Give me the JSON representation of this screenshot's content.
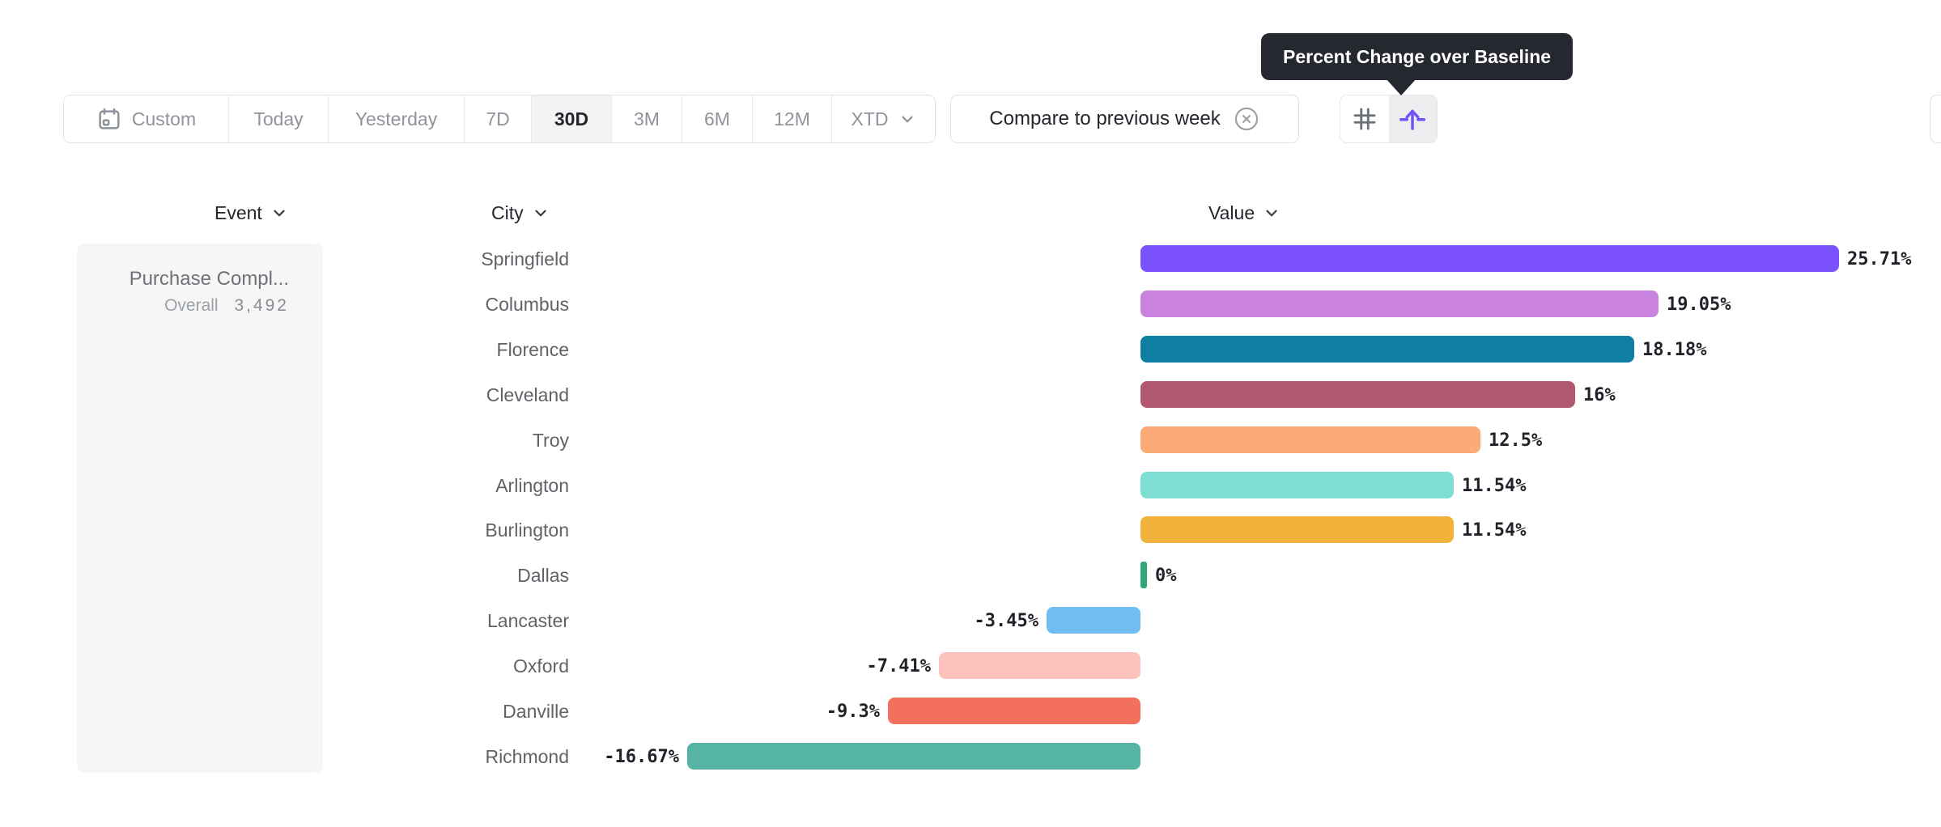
{
  "tooltip": {
    "text": "Percent Change over Baseline"
  },
  "toolbar": {
    "date_ranges": [
      {
        "label": "Custom",
        "icon": "calendar-icon",
        "selected": false
      },
      {
        "label": "Today",
        "selected": false
      },
      {
        "label": "Yesterday",
        "selected": false
      },
      {
        "label": "7D",
        "selected": false
      },
      {
        "label": "30D",
        "selected": true
      },
      {
        "label": "3M",
        "selected": false
      },
      {
        "label": "6M",
        "selected": false
      },
      {
        "label": "12M",
        "selected": false
      },
      {
        "label": "XTD",
        "chevron": true,
        "selected": false
      }
    ],
    "compare_label": "Compare to previous week",
    "view_toggle": [
      {
        "icon": "grid-icon",
        "selected": false
      },
      {
        "icon": "baseline-arrow-icon",
        "selected": true
      }
    ]
  },
  "columns": {
    "event": "Event",
    "city": "City",
    "value": "Value"
  },
  "event_card": {
    "title": "Purchase Compl...",
    "overall_label": "Overall",
    "overall_value": "3,492"
  },
  "chart_data": {
    "type": "bar",
    "orientation": "horizontal",
    "title": "Percent Change over Baseline",
    "unit": "%",
    "baseline": 0,
    "xlim": [
      -16.67,
      25.71
    ],
    "categories": [
      "Springfield",
      "Columbus",
      "Florence",
      "Cleveland",
      "Troy",
      "Arlington",
      "Burlington",
      "Dallas",
      "Lancaster",
      "Oxford",
      "Danville",
      "Richmond"
    ],
    "values": [
      25.71,
      19.05,
      18.18,
      16,
      12.5,
      11.54,
      11.54,
      0,
      -3.45,
      -7.41,
      -9.3,
      -16.67
    ],
    "value_labels": [
      "25.71%",
      "19.05%",
      "18.18%",
      "16%",
      "12.5%",
      "11.54%",
      "11.54%",
      "0%",
      "-3.45%",
      "-7.41%",
      "-9.3%",
      "-16.67%"
    ],
    "colors": [
      "#7B52FC",
      "#C983DE",
      "#0F7EA3",
      "#B25971",
      "#FBAB76",
      "#7FDED3",
      "#F1B33C",
      "#2EA876",
      "#70BDF2",
      "#FCC3BD",
      "#F2705C",
      "#55B4A4"
    ]
  },
  "colors": {
    "accent_purple": "#7352F5",
    "tooltip_bg": "#26282F",
    "border": "#E2E3E7",
    "selected_segment_bg": "#F3F3F4",
    "text_dark": "#24262E",
    "text_gray": "#5F6368",
    "text_light_gray": "#8F939B"
  }
}
